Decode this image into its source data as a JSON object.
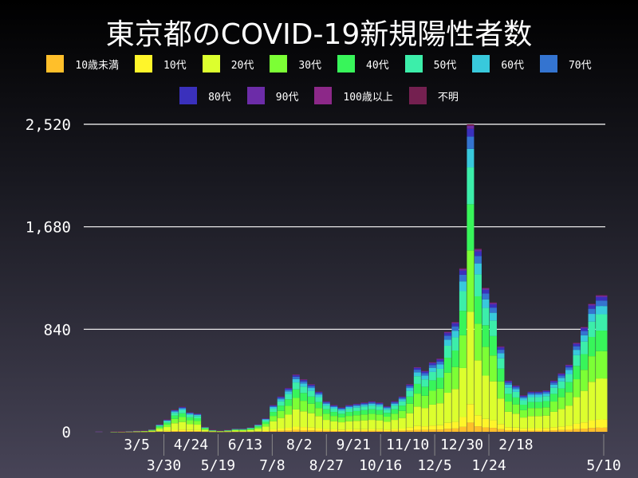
{
  "chart_data": {
    "type": "bar",
    "stacked": true,
    "title": "東京都のCOVID-19新規陽性者数",
    "ylim": [
      0,
      2520
    ],
    "yticks": [
      "0",
      "840",
      "1,680",
      "2,520"
    ],
    "ytick_values": [
      0,
      840,
      1680,
      2520
    ],
    "grid": true,
    "legend_position": "top",
    "xticks": [
      "3/5",
      "3/30",
      "4/24",
      "5/19",
      "6/13",
      "7/8",
      "8/2",
      "8/27",
      "9/21",
      "10/16",
      "11/10",
      "12/5",
      "12/30",
      "1/24",
      "2/18",
      "5/10"
    ],
    "xtick_dates": [
      "2020-03-05",
      "2020-03-30",
      "2020-04-24",
      "2020-05-19",
      "2020-06-13",
      "2020-07-08",
      "2020-08-02",
      "2020-08-27",
      "2020-09-21",
      "2020-10-16",
      "2020-11-10",
      "2020-12-05",
      "2020-12-30",
      "2021-01-24",
      "2021-02-18",
      "2021-05-10"
    ],
    "x_start": "2020-01-16",
    "x_end": "2021-05-10",
    "dates": [
      "2020-01-16",
      "2020-01-23",
      "2020-01-30",
      "2020-02-06",
      "2020-02-13",
      "2020-02-20",
      "2020-02-27",
      "2020-03-05",
      "2020-03-12",
      "2020-03-19",
      "2020-03-26",
      "2020-04-02",
      "2020-04-09",
      "2020-04-16",
      "2020-04-23",
      "2020-04-30",
      "2020-05-07",
      "2020-05-14",
      "2020-05-21",
      "2020-05-28",
      "2020-06-04",
      "2020-06-11",
      "2020-06-18",
      "2020-06-25",
      "2020-07-02",
      "2020-07-09",
      "2020-07-16",
      "2020-07-23",
      "2020-07-30",
      "2020-08-06",
      "2020-08-13",
      "2020-08-20",
      "2020-08-27",
      "2020-09-03",
      "2020-09-10",
      "2020-09-17",
      "2020-09-24",
      "2020-10-01",
      "2020-10-08",
      "2020-10-15",
      "2020-10-22",
      "2020-10-29",
      "2020-11-05",
      "2020-11-12",
      "2020-11-19",
      "2020-11-26",
      "2020-12-03",
      "2020-12-10",
      "2020-12-17",
      "2020-12-24",
      "2020-12-31",
      "2021-01-07",
      "2021-01-14",
      "2021-01-21",
      "2021-01-28",
      "2021-02-04",
      "2021-02-11",
      "2021-02-18",
      "2021-02-25",
      "2021-03-04",
      "2021-03-11",
      "2021-03-18",
      "2021-03-25",
      "2021-04-01",
      "2021-04-08",
      "2021-04-15",
      "2021-04-22",
      "2021-04-29",
      "2021-05-06",
      "2021-05-10"
    ],
    "totals": [
      0,
      0,
      1,
      0,
      2,
      3,
      5,
      8,
      10,
      20,
      60,
      100,
      180,
      205,
      160,
      150,
      40,
      15,
      10,
      15,
      25,
      25,
      35,
      60,
      110,
      220,
      290,
      360,
      470,
      430,
      390,
      330,
      250,
      220,
      200,
      220,
      230,
      240,
      250,
      240,
      210,
      250,
      290,
      390,
      530,
      500,
      570,
      600,
      820,
      900,
      1340,
      2520,
      1500,
      1180,
      1060,
      700,
      420,
      380,
      300,
      330,
      330,
      340,
      420,
      480,
      550,
      730,
      860,
      1050,
      1120,
      1120
    ],
    "series": [
      {
        "name": "10歳未満",
        "color": "#ffbf2a",
        "share": 0.03
      },
      {
        "name": "10代",
        "color": "#fff52a",
        "share": 0.06
      },
      {
        "name": "20代",
        "color": "#dcff2e",
        "share": 0.3
      },
      {
        "name": "30代",
        "color": "#7cff35",
        "share": 0.2
      },
      {
        "name": "40代",
        "color": "#38f55a",
        "share": 0.15
      },
      {
        "name": "50代",
        "color": "#3ceeaa",
        "share": 0.12
      },
      {
        "name": "60代",
        "color": "#38c9dc",
        "share": 0.06
      },
      {
        "name": "70代",
        "color": "#3474d0",
        "share": 0.04
      },
      {
        "name": "80代",
        "color": "#3a30bc",
        "share": 0.025
      },
      {
        "name": "90代",
        "color": "#6c2ca8",
        "share": 0.01
      },
      {
        "name": "100歳以上",
        "color": "#8c2888",
        "share": 0.0005
      },
      {
        "name": "不明",
        "color": "#742050",
        "share": 0.0045
      }
    ]
  }
}
